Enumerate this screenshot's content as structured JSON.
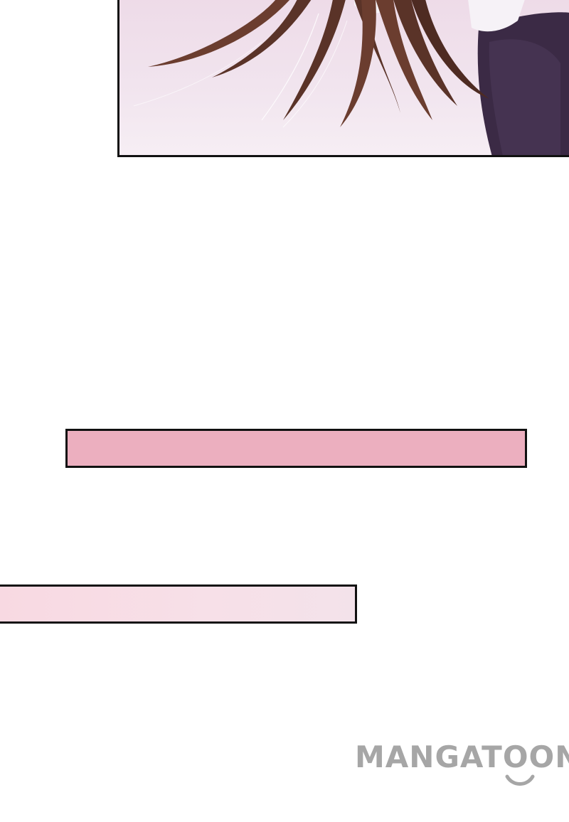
{
  "page": {
    "background": "#ffffff"
  },
  "panels": {
    "top_panel": {
      "description_colors": {
        "sky": "#eedbe8",
        "hair": "#5a3328",
        "coat": "#3b2a45",
        "border": "#111111"
      }
    },
    "pink_strip": {
      "color": "#ecafbf"
    },
    "light_strip": {
      "color": "#f8d9e2"
    }
  },
  "watermark": {
    "text": "MANGATOON",
    "color": "#a6a6a6",
    "icon": "smile-icon"
  }
}
